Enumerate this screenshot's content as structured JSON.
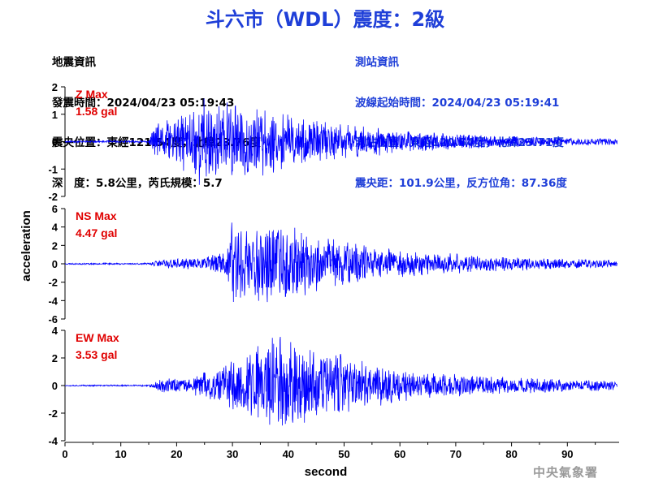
{
  "title": "斗六市（WDL）震度：2級",
  "quake_info": {
    "heading": "地震資訊",
    "time_line": "發震時間：2024/04/23 05:19:43",
    "epicenter_line": "震央位置：東經121.54度，北緯23.76度",
    "depth_line": "深　度：5.8公里，芮氏規模：5.7"
  },
  "station_info": {
    "heading": "測站資訊",
    "wave_start_line": "波線起始時間：2024/04/23 05:19:41",
    "position_line": "測站位置：東經120.54度，北緯23.71度",
    "distance_line": "震央距：101.9公里，反方位角：87.36度"
  },
  "watermark": "中央氣象署",
  "colors": {
    "trace": "#0000ff",
    "max_label": "#e00000",
    "title": "#1f3fd8"
  },
  "chart_data": {
    "type": "line",
    "xlabel": "second",
    "ylabel": "acceleration",
    "xlim": [
      0,
      99
    ],
    "xticks": [
      "0",
      "10",
      "20",
      "30",
      "40",
      "50",
      "60",
      "70",
      "80",
      "90"
    ],
    "panels": [
      {
        "name": "Z Max",
        "max_value": "1.58 gal",
        "ylim": [
          -2,
          2
        ],
        "yticks": [
          "2",
          "1",
          "0",
          "-1",
          "-2"
        ],
        "peak": 1.58,
        "envelope": [
          [
            0,
            0.03
          ],
          [
            15,
            0.04
          ],
          [
            16,
            0.55
          ],
          [
            20,
            0.8
          ],
          [
            25,
            1.5
          ],
          [
            30,
            1.2
          ],
          [
            35,
            1.1
          ],
          [
            40,
            0.9
          ],
          [
            45,
            0.7
          ],
          [
            50,
            0.55
          ],
          [
            55,
            0.5
          ],
          [
            60,
            0.35
          ],
          [
            70,
            0.25
          ],
          [
            80,
            0.18
          ],
          [
            90,
            0.12
          ],
          [
            99,
            0.1
          ]
        ],
        "seed": 11
      },
      {
        "name": "NS Max",
        "max_value": "4.47 gal",
        "ylim": [
          -6,
          6
        ],
        "yticks": [
          "6",
          "4",
          "2",
          "0",
          "-2",
          "-4",
          "-6"
        ],
        "peak": 4.47,
        "envelope": [
          [
            0,
            0.05
          ],
          [
            15,
            0.06
          ],
          [
            17,
            0.3
          ],
          [
            25,
            0.45
          ],
          [
            29,
            1.0
          ],
          [
            30,
            3.5
          ],
          [
            33,
            2.8
          ],
          [
            38,
            3.0
          ],
          [
            41,
            2.6
          ],
          [
            45,
            2.0
          ],
          [
            50,
            1.6
          ],
          [
            55,
            1.3
          ],
          [
            60,
            1.0
          ],
          [
            70,
            0.7
          ],
          [
            80,
            0.5
          ],
          [
            90,
            0.35
          ],
          [
            99,
            0.25
          ]
        ],
        "seed": 23
      },
      {
        "name": "EW Max",
        "max_value": "3.53 gal",
        "ylim": [
          -4,
          4
        ],
        "yticks": [
          "4",
          "2",
          "0",
          "-2",
          "-4"
        ],
        "peak": 3.53,
        "envelope": [
          [
            0,
            0.04
          ],
          [
            15,
            0.05
          ],
          [
            18,
            0.55
          ],
          [
            22,
            0.45
          ],
          [
            28,
            1.4
          ],
          [
            33,
            2.2
          ],
          [
            38,
            3.3
          ],
          [
            42,
            2.8
          ],
          [
            46,
            2.4
          ],
          [
            50,
            2.0
          ],
          [
            55,
            1.5
          ],
          [
            60,
            1.1
          ],
          [
            70,
            0.75
          ],
          [
            80,
            0.55
          ],
          [
            90,
            0.4
          ],
          [
            99,
            0.35
          ]
        ],
        "seed": 37
      }
    ]
  }
}
